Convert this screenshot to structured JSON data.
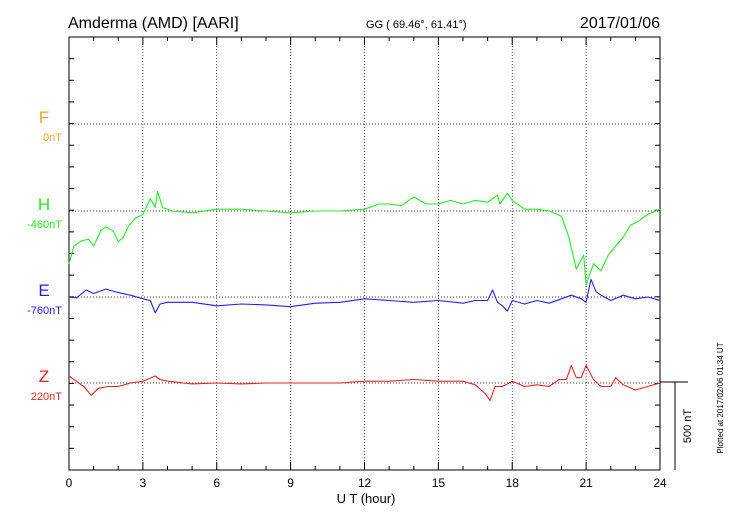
{
  "header": {
    "station": "Amderma (AMD)  [AARI]",
    "coords": "GG ( 69.46°,  61.41°)",
    "date": "2017/01/06"
  },
  "side_note": "Plotted at 2017/02/06 01:34 UT",
  "scale_bar": {
    "label": "500 nT",
    "value_nT": 500
  },
  "chart_data": {
    "type": "line",
    "xlabel": "U T (hour)",
    "xlim": [
      0,
      24
    ],
    "x_ticks": [
      0,
      3,
      6,
      9,
      12,
      15,
      18,
      21,
      24
    ],
    "x_tick_labels": [
      "0",
      "3",
      "6",
      "9",
      "12",
      "15",
      "18",
      "21",
      "24"
    ],
    "grid": true,
    "series": [
      {
        "name": "F",
        "baseline": "0nT",
        "color": "#f5a623",
        "points": []
      },
      {
        "name": "H",
        "baseline": "-460nT",
        "color": "#22ee22",
        "points": [
          [
            0,
            -300
          ],
          [
            0.2,
            -200
          ],
          [
            0.5,
            -170
          ],
          [
            0.8,
            -160
          ],
          [
            1.0,
            -200
          ],
          [
            1.3,
            -110
          ],
          [
            1.5,
            -90
          ],
          [
            1.8,
            -115
          ],
          [
            2.0,
            -175
          ],
          [
            2.2,
            -150
          ],
          [
            2.4,
            -90
          ],
          [
            2.7,
            -40
          ],
          [
            3.0,
            -20
          ],
          [
            3.3,
            70
          ],
          [
            3.5,
            20
          ],
          [
            3.6,
            110
          ],
          [
            3.8,
            20
          ],
          [
            4.2,
            0
          ],
          [
            5.0,
            -10
          ],
          [
            6.0,
            10
          ],
          [
            7.0,
            10
          ],
          [
            8.0,
            0
          ],
          [
            9.0,
            -10
          ],
          [
            10.0,
            0
          ],
          [
            11.0,
            0
          ],
          [
            12.0,
            10
          ],
          [
            12.6,
            40
          ],
          [
            13.0,
            40
          ],
          [
            13.5,
            30
          ],
          [
            14.0,
            80
          ],
          [
            14.5,
            40
          ],
          [
            15.0,
            40
          ],
          [
            15.5,
            60
          ],
          [
            16.0,
            40
          ],
          [
            16.5,
            60
          ],
          [
            17.0,
            50
          ],
          [
            17.4,
            90
          ],
          [
            17.5,
            40
          ],
          [
            17.8,
            100
          ],
          [
            18.0,
            60
          ],
          [
            18.5,
            10
          ],
          [
            19.0,
            10
          ],
          [
            19.5,
            0
          ],
          [
            20.0,
            -30
          ],
          [
            20.3,
            -150
          ],
          [
            20.6,
            -330
          ],
          [
            20.9,
            -250
          ],
          [
            21.0,
            -420
          ],
          [
            21.3,
            -300
          ],
          [
            21.6,
            -340
          ],
          [
            21.9,
            -250
          ],
          [
            22.2,
            -200
          ],
          [
            22.5,
            -150
          ],
          [
            22.8,
            -80
          ],
          [
            23.1,
            -60
          ],
          [
            23.5,
            -20
          ],
          [
            24.0,
            10
          ]
        ]
      },
      {
        "name": "E",
        "baseline": "-760nT",
        "color": "#2222dd",
        "points": [
          [
            0,
            0
          ],
          [
            0.3,
            -5
          ],
          [
            0.7,
            40
          ],
          [
            1.0,
            20
          ],
          [
            1.5,
            45
          ],
          [
            2.0,
            25
          ],
          [
            2.5,
            10
          ],
          [
            3.0,
            -10
          ],
          [
            3.3,
            -20
          ],
          [
            3.5,
            -90
          ],
          [
            3.7,
            -40
          ],
          [
            4.0,
            -30
          ],
          [
            5.0,
            -30
          ],
          [
            6.0,
            -50
          ],
          [
            7.0,
            -40
          ],
          [
            8.0,
            -45
          ],
          [
            9.0,
            -55
          ],
          [
            10.0,
            -35
          ],
          [
            11.0,
            -30
          ],
          [
            12.0,
            -10
          ],
          [
            13.0,
            -20
          ],
          [
            14.0,
            -30
          ],
          [
            15.0,
            -20
          ],
          [
            16.0,
            -35
          ],
          [
            16.5,
            -20
          ],
          [
            17.0,
            -20
          ],
          [
            17.2,
            40
          ],
          [
            17.4,
            -30
          ],
          [
            17.6,
            -50
          ],
          [
            17.8,
            -80
          ],
          [
            18.0,
            -20
          ],
          [
            18.5,
            -40
          ],
          [
            19.0,
            -20
          ],
          [
            19.5,
            -35
          ],
          [
            20.0,
            -10
          ],
          [
            20.4,
            10
          ],
          [
            20.8,
            -10
          ],
          [
            21.0,
            -30
          ],
          [
            21.2,
            100
          ],
          [
            21.4,
            30
          ],
          [
            21.6,
            10
          ],
          [
            22.0,
            -20
          ],
          [
            22.5,
            10
          ],
          [
            23.0,
            -10
          ],
          [
            23.5,
            0
          ],
          [
            24.0,
            -20
          ]
        ]
      },
      {
        "name": "Z",
        "baseline": "220nT",
        "color": "#ee2222",
        "points": [
          [
            0,
            40
          ],
          [
            0.3,
            10
          ],
          [
            0.6,
            -20
          ],
          [
            0.9,
            -70
          ],
          [
            1.2,
            -30
          ],
          [
            1.6,
            -20
          ],
          [
            2.0,
            -20
          ],
          [
            2.5,
            0
          ],
          [
            3.0,
            10
          ],
          [
            3.5,
            40
          ],
          [
            3.7,
            20
          ],
          [
            4.0,
            10
          ],
          [
            5.0,
            -5
          ],
          [
            6.0,
            0
          ],
          [
            7.0,
            -5
          ],
          [
            8.0,
            0
          ],
          [
            9.0,
            0
          ],
          [
            10.0,
            0
          ],
          [
            11.0,
            0
          ],
          [
            12.0,
            10
          ],
          [
            13.0,
            10
          ],
          [
            14.0,
            20
          ],
          [
            15.0,
            10
          ],
          [
            16.0,
            10
          ],
          [
            16.5,
            -10
          ],
          [
            16.9,
            -60
          ],
          [
            17.1,
            -100
          ],
          [
            17.3,
            -20
          ],
          [
            17.6,
            -20
          ],
          [
            18.0,
            10
          ],
          [
            18.5,
            -20
          ],
          [
            19.0,
            -10
          ],
          [
            19.5,
            -20
          ],
          [
            19.9,
            20
          ],
          [
            20.2,
            20
          ],
          [
            20.4,
            100
          ],
          [
            20.6,
            30
          ],
          [
            20.8,
            30
          ],
          [
            21.0,
            100
          ],
          [
            21.3,
            20
          ],
          [
            21.6,
            -20
          ],
          [
            22.0,
            -20
          ],
          [
            22.2,
            30
          ],
          [
            22.5,
            -10
          ],
          [
            23.0,
            -40
          ],
          [
            23.5,
            -20
          ],
          [
            24.0,
            0
          ]
        ]
      }
    ]
  }
}
